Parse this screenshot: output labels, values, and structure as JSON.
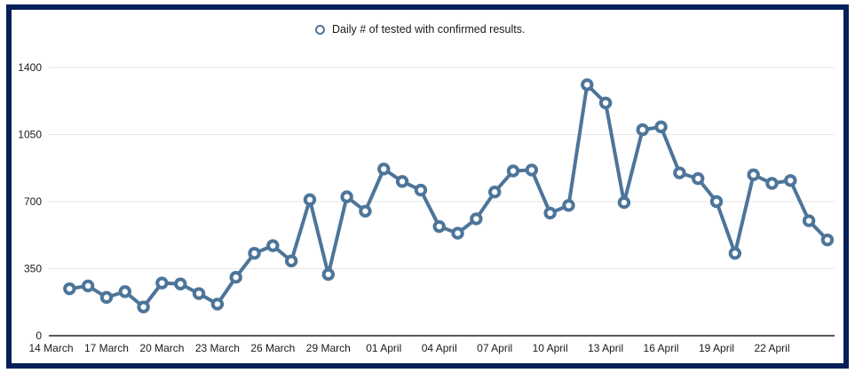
{
  "frame": {
    "border_color": "#04205a",
    "background_color": "#ffffff"
  },
  "legend": {
    "label": "Daily # of tested with confirmed results.",
    "marker_color": "#4d7599",
    "position": "top-center"
  },
  "chart_data": {
    "type": "line",
    "title": "Daily # of tested with confirmed results.",
    "xlabel": "",
    "ylabel": "",
    "x_axis_start": "14 March",
    "line_color": "#4d7599",
    "grid_color": "#e6e6e6",
    "axis_line_color": "#222222",
    "tick_label_color": "#1a1a1a",
    "marker_style": "ring-circle",
    "grid": true,
    "ylim": [
      0,
      1400
    ],
    "yticks": [
      0,
      350,
      700,
      1050,
      1400
    ],
    "xtick_labels": [
      "14 March",
      "17 March",
      "20 March",
      "23 March",
      "26 March",
      "29 March",
      "01 April",
      "04 April",
      "07 April",
      "10 April",
      "13 April",
      "16 April",
      "19 April",
      "22 April"
    ],
    "xtick_day_index": [
      0,
      3,
      6,
      9,
      12,
      15,
      18,
      21,
      24,
      27,
      30,
      33,
      36,
      39
    ],
    "dates": [
      "15 March",
      "16 March",
      "17 March",
      "18 March",
      "19 March",
      "20 March",
      "21 March",
      "22 March",
      "23 March",
      "24 March",
      "25 March",
      "26 March",
      "27 March",
      "28 March",
      "29 March",
      "30 March",
      "31 March",
      "01 April",
      "02 April",
      "03 April",
      "04 April",
      "05 April",
      "06 April",
      "07 April",
      "08 April",
      "09 April",
      "10 April",
      "11 April",
      "12 April",
      "13 April",
      "14 April",
      "15 April",
      "16 April",
      "17 April",
      "18 April",
      "19 April",
      "20 April",
      "21 April",
      "22 April",
      "23 April",
      "24 April",
      "25 April"
    ],
    "day_index": [
      1,
      2,
      3,
      4,
      5,
      6,
      7,
      8,
      9,
      10,
      11,
      12,
      13,
      14,
      15,
      16,
      17,
      18,
      19,
      20,
      21,
      22,
      23,
      24,
      25,
      26,
      27,
      28,
      29,
      30,
      31,
      32,
      33,
      34,
      35,
      36,
      37,
      38,
      39,
      40,
      41,
      42
    ],
    "values": [
      245,
      260,
      200,
      230,
      150,
      275,
      270,
      220,
      165,
      305,
      430,
      470,
      390,
      710,
      320,
      725,
      650,
      870,
      805,
      760,
      570,
      535,
      610,
      750,
      860,
      865,
      640,
      680,
      1310,
      1215,
      695,
      1075,
      1090,
      850,
      820,
      700,
      430,
      840,
      795,
      810,
      600,
      500
    ]
  }
}
